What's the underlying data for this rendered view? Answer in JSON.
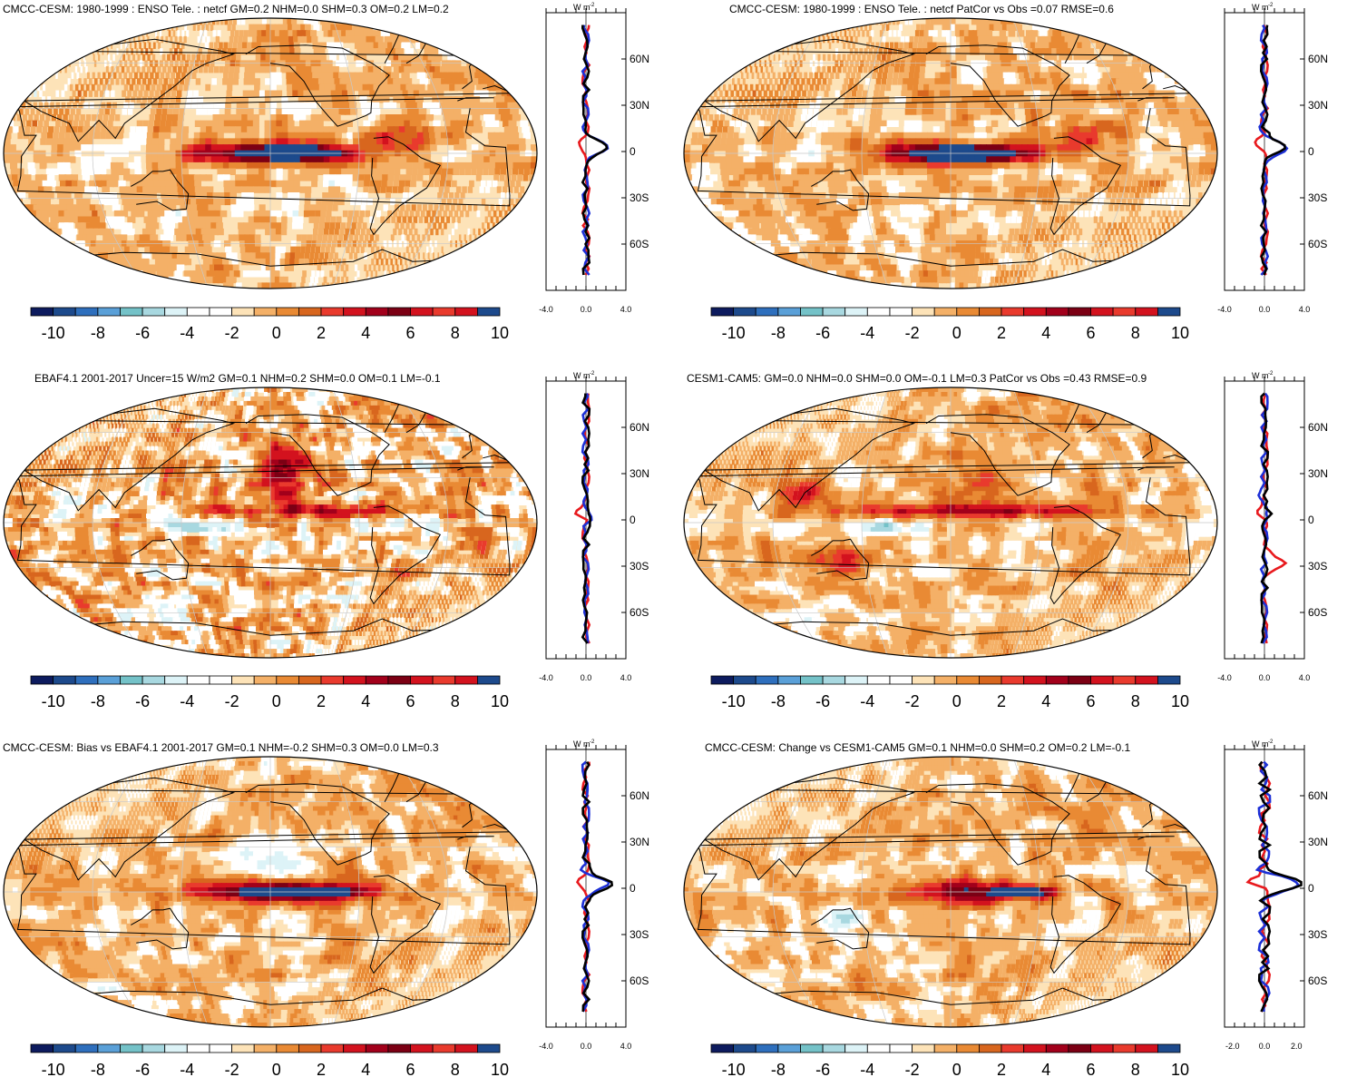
{
  "palette": [
    "#0d1b5e",
    "#1d4a8c",
    "#2e6fbd",
    "#5aa0d8",
    "#74c2c8",
    "#a8d8e0",
    "#ddf3f7",
    "#ffffff",
    "#ffffff",
    "#fde3b8",
    "#f4b067",
    "#e98a34",
    "#d8661e",
    "#e93a2d",
    "#d3121e",
    "#a2001b",
    "#7c0014",
    "#d3121e",
    "#e93a2d",
    "#d3121e",
    "#1d4a8c"
  ],
  "colorbar_labels": [
    "-10",
    "-8",
    "-6",
    "-4",
    "-2",
    "0",
    "2",
    "4",
    "6",
    "8",
    "10"
  ],
  "profile_colors": {
    "black": "#000000",
    "red": "#e8191d",
    "blue": "#1c2fd6"
  },
  "unit_label": "W m",
  "unit_exp": "-2",
  "lat_ticks": [
    "60N",
    "30N",
    "0",
    "30S",
    "60S"
  ],
  "panels": [
    {
      "title": "CMCC-CESM: 1980-1999 : ENSO Tele. : netcf GM=0.2 NHM=0.0 SHM=0.3 OM=0.2 LM=0.2",
      "pattern": "model",
      "profile_x": [
        "-4.0",
        "0.0",
        "4.0"
      ],
      "xmin": -4,
      "xmax": 4
    },
    {
      "title": "CMCC-CESM: 1980-1999 : ENSO Tele. : netcf PatCor vs Obs =0.07 RMSE=0.6",
      "pattern": "model",
      "profile_x": [
        "-4.0",
        "0.0",
        "4.0"
      ],
      "xmin": -4,
      "xmax": 4
    },
    {
      "title": "EBAF4.1 2001-2017 Uncer=15 W/m2 GM=0.1 NHM=0.2 SHM=0.0 OM=0.1 LM=-0.1",
      "pattern": "obs",
      "profile_x": [
        "-4.0",
        "0.0",
        "4.0"
      ],
      "xmin": -4,
      "xmax": 4
    },
    {
      "title": "CESM1-CAM5: GM=0.0 NHM=0.0 SHM=0.0 OM=-0.1 LM=0.3 PatCor vs Obs =0.43 RMSE=0.9",
      "pattern": "cesm",
      "profile_x": [
        "-4.0",
        "0.0",
        "4.0"
      ],
      "xmin": -4,
      "xmax": 4
    },
    {
      "title": "CMCC-CESM: Bias vs EBAF4.1 2001-2017 GM=0.1 NHM=-0.2 SHM=0.3 OM=0.0 LM=0.3",
      "pattern": "bias",
      "profile_x": [
        "-4.0",
        "0.0",
        "4.0"
      ],
      "xmin": -4,
      "xmax": 4
    },
    {
      "title": "CMCC-CESM: Change vs CESM1-CAM5 GM=0.1 NHM=0.0 SHM=0.2 OM=0.2 LM=-0.1",
      "pattern": "change",
      "profile_x": [
        "-2.0",
        "0.0",
        "2.0"
      ],
      "xmin": -2.5,
      "xmax": 2.5
    }
  ]
}
